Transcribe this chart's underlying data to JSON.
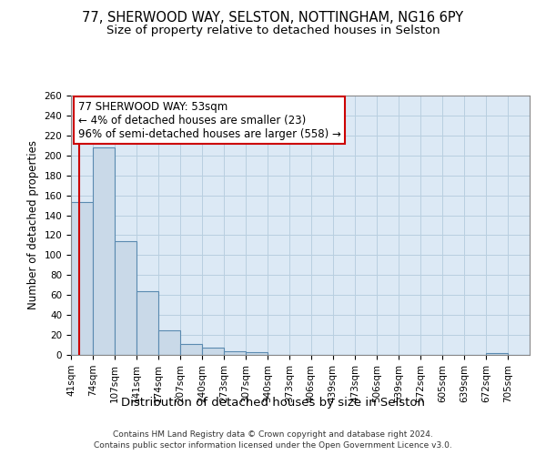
{
  "title_line1": "77, SHERWOOD WAY, SELSTON, NOTTINGHAM, NG16 6PY",
  "title_line2": "Size of property relative to detached houses in Selston",
  "xlabel": "Distribution of detached houses by size in Selston",
  "ylabel": "Number of detached properties",
  "bin_labels": [
    "41sqm",
    "74sqm",
    "107sqm",
    "141sqm",
    "174sqm",
    "207sqm",
    "240sqm",
    "273sqm",
    "307sqm",
    "340sqm",
    "373sqm",
    "406sqm",
    "439sqm",
    "473sqm",
    "506sqm",
    "539sqm",
    "572sqm",
    "605sqm",
    "639sqm",
    "672sqm",
    "705sqm"
  ],
  "bin_edges": [
    41,
    74,
    107,
    141,
    174,
    207,
    240,
    273,
    307,
    340,
    373,
    406,
    439,
    473,
    506,
    539,
    572,
    605,
    639,
    672,
    705,
    738
  ],
  "bar_heights": [
    153,
    208,
    114,
    64,
    25,
    11,
    7,
    4,
    3,
    0,
    0,
    0,
    0,
    0,
    0,
    0,
    0,
    0,
    0,
    2,
    0
  ],
  "bar_color": "#c9d9e8",
  "bar_edge_color": "#5a8ab0",
  "property_size": 53,
  "property_line_color": "#cc0000",
  "annotation_line1": "77 SHERWOOD WAY: 53sqm",
  "annotation_line2": "← 4% of detached houses are smaller (23)",
  "annotation_line3": "96% of semi-detached houses are larger (558) →",
  "annotation_box_color": "#cc0000",
  "ylim": [
    0,
    260
  ],
  "yticks": [
    0,
    20,
    40,
    60,
    80,
    100,
    120,
    140,
    160,
    180,
    200,
    220,
    240,
    260
  ],
  "plot_bg_color": "#dce9f5",
  "grid_color": "#b8cfe0",
  "background_color": "#ffffff",
  "footer_line1": "Contains HM Land Registry data © Crown copyright and database right 2024.",
  "footer_line2": "Contains public sector information licensed under the Open Government Licence v3.0.",
  "title_fontsize": 10.5,
  "subtitle_fontsize": 9.5,
  "tick_fontsize": 7.5,
  "ylabel_fontsize": 8.5,
  "xlabel_fontsize": 9.5,
  "annotation_fontsize": 8.5,
  "footer_fontsize": 6.5
}
